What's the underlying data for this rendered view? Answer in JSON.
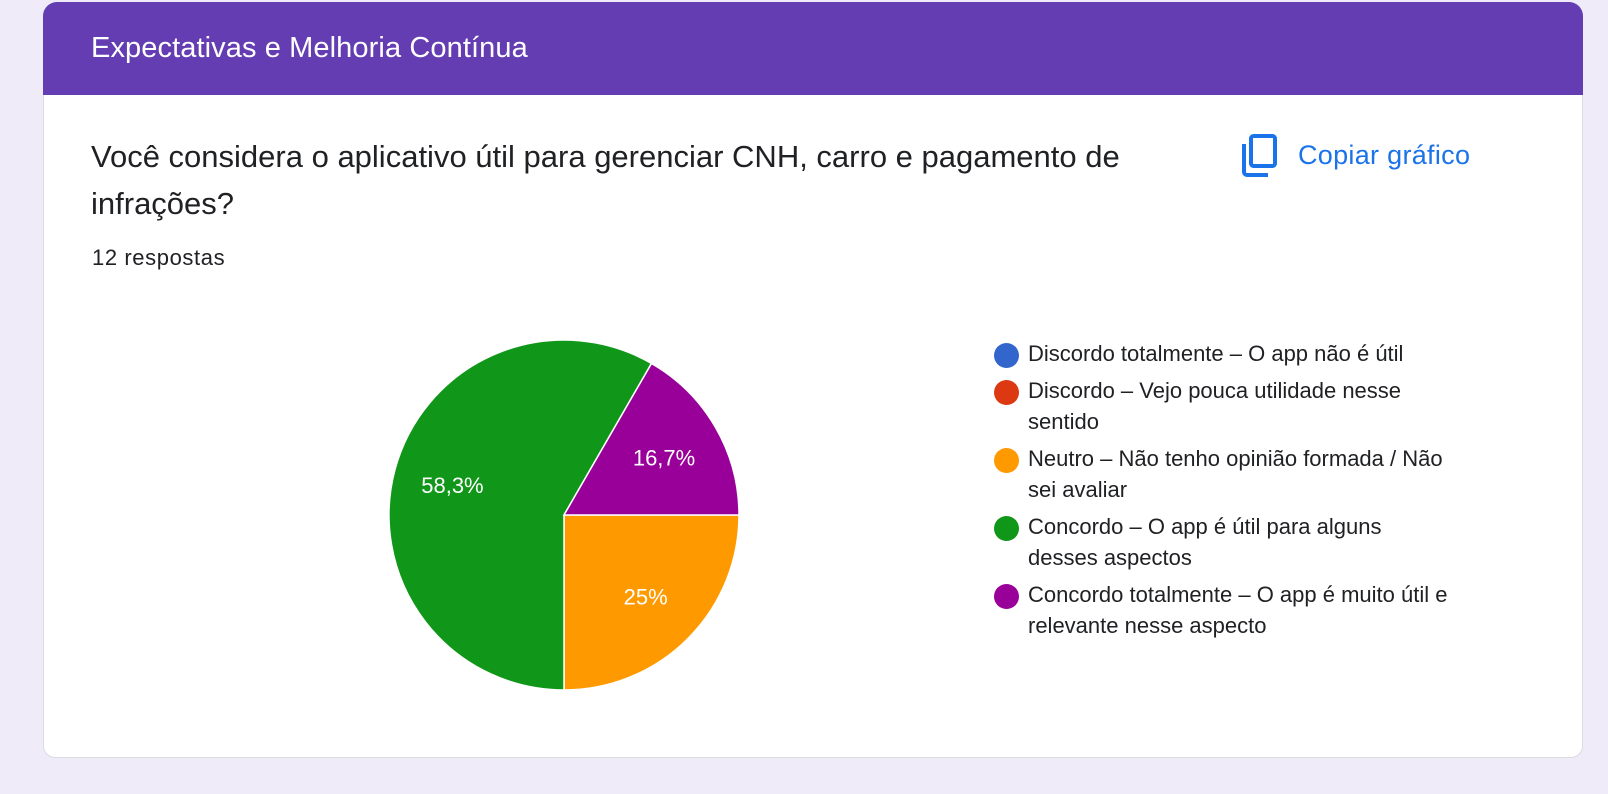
{
  "section": {
    "title": "Expectativas e Melhoria Contínua"
  },
  "question": {
    "text": "Você considera o aplicativo útil para gerenciar CNH, carro e pagamento de infrações?",
    "responses": "12 respostas"
  },
  "copy_chart": {
    "label": "Copiar gráfico",
    "icon": "copy-icon",
    "color": "#1a73e8"
  },
  "colors": {
    "header": "#643db3",
    "background": "#efebf8"
  },
  "chart_data": {
    "type": "pie",
    "total_responses": 12,
    "categories": [
      "Discordo totalmente – O app não é útil",
      "Discordo – Vejo pouca utilidade nesse sentido",
      "Neutro – Não tenho opinião formada / Não sei avaliar",
      "Concordo – O app é útil para alguns desses aspectos",
      "Concordo totalmente – O app é muito útil e relevante nesse aspecto"
    ],
    "values": [
      0,
      0,
      3,
      7,
      2
    ],
    "data_labels": [
      "",
      "",
      "25%",
      "58,3%",
      "16,7%"
    ],
    "colors": [
      "#3366cc",
      "#dc3912",
      "#ff9900",
      "#109618",
      "#990099"
    ],
    "legend_position": "right"
  }
}
